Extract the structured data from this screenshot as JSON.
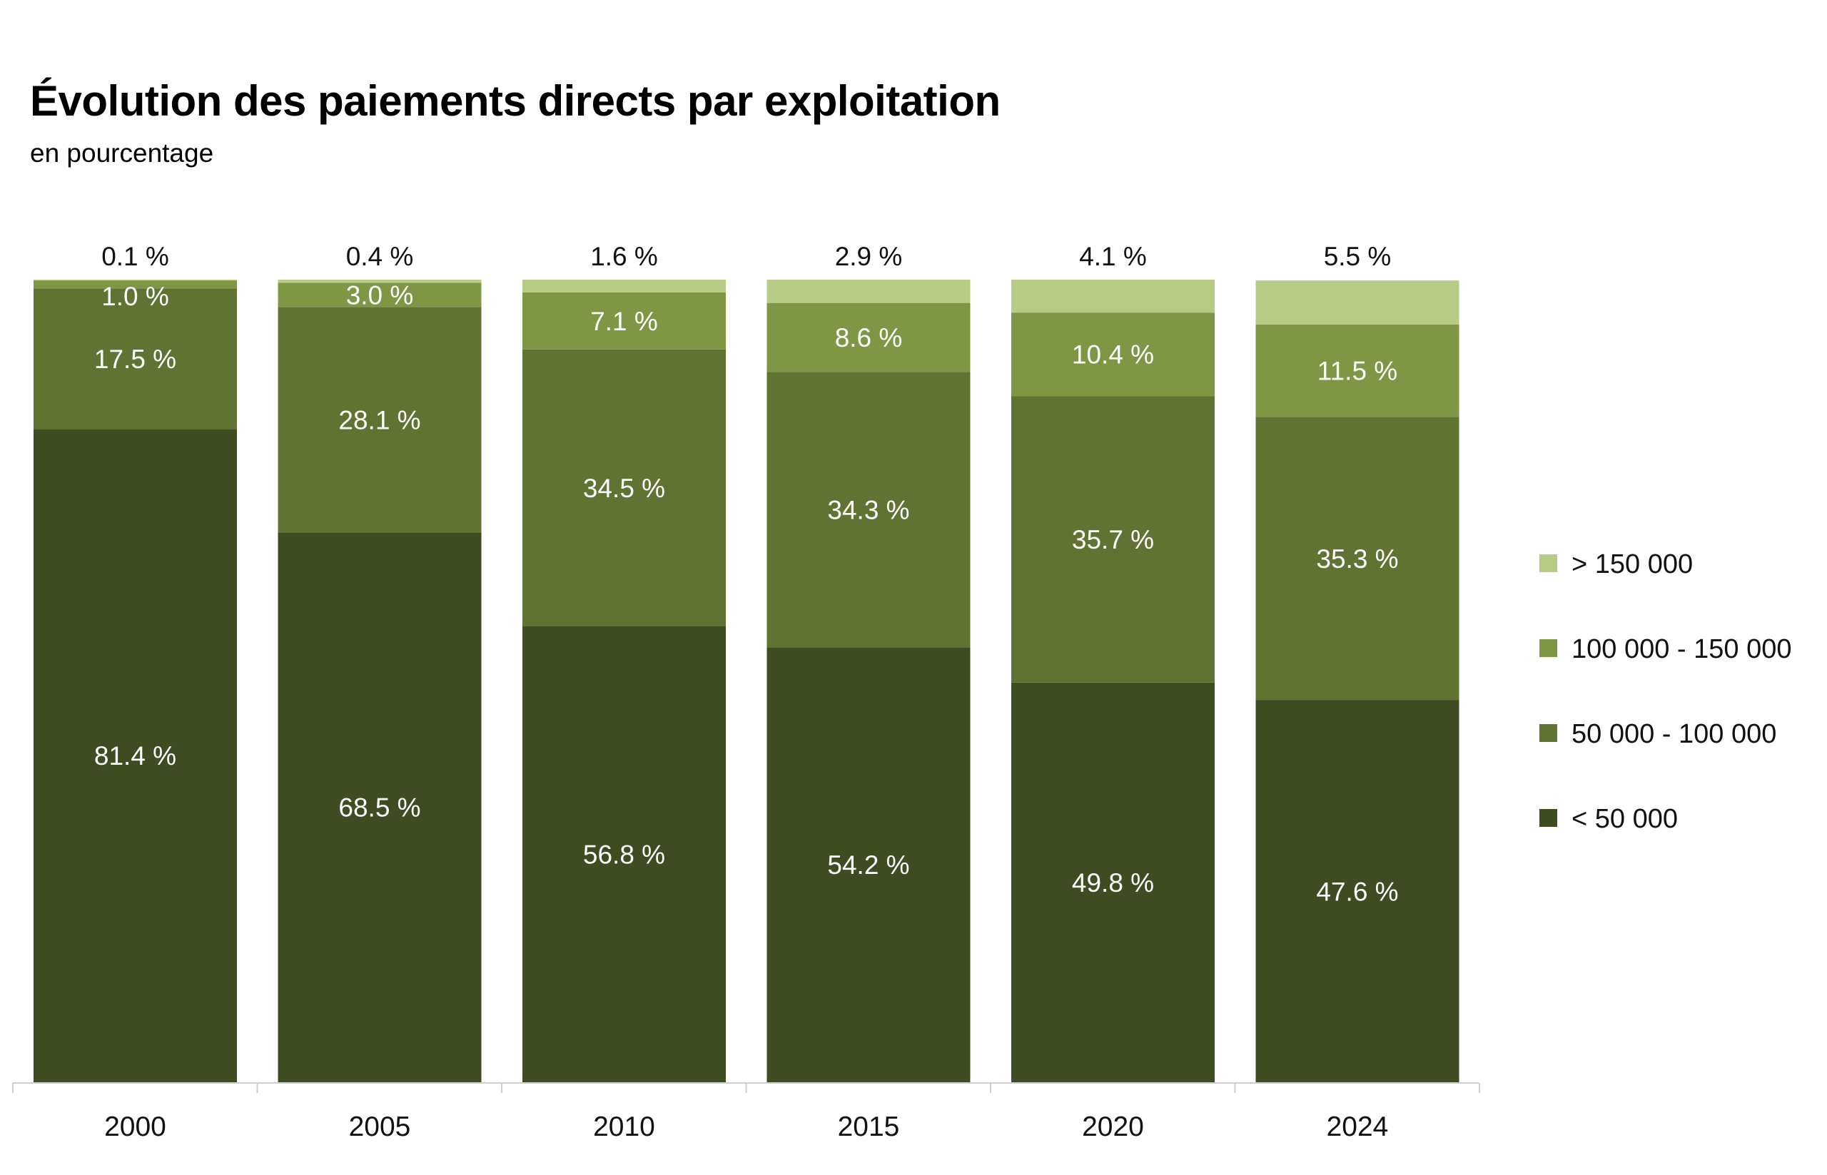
{
  "title": "Évolution des paiements directs par exploitation",
  "subtitle": "en pourcentage",
  "colors": {
    "lt50": "#3f4c22",
    "r50_100": "#607333",
    "r100_150": "#7f9744",
    "gt150": "#b7cb87"
  },
  "chart_data": {
    "type": "bar",
    "stacked": true,
    "categories": [
      "2000",
      "2005",
      "2010",
      "2015",
      "2020",
      "2024"
    ],
    "series": [
      {
        "name": "< 50 000",
        "key": "lt50",
        "values": [
          81.4,
          68.5,
          56.8,
          54.2,
          49.8,
          47.6
        ],
        "labels": [
          "81.4 %",
          "68.5 %",
          "56.8 %",
          "54.2 %",
          "49.8 %",
          "47.6 %"
        ]
      },
      {
        "name": "50 000 - 100 000",
        "key": "r50_100",
        "values": [
          17.5,
          28.1,
          34.5,
          34.3,
          35.7,
          35.3
        ],
        "labels": [
          "17.5 %",
          "28.1 %",
          "34.5 %",
          "34.3 %",
          "35.7 %",
          "35.3 %"
        ]
      },
      {
        "name": "100 000 - 150 000",
        "key": "r100_150",
        "values": [
          1.0,
          3.0,
          7.1,
          8.6,
          10.4,
          11.5
        ],
        "labels": [
          "1.0 %",
          "3.0 %",
          "7.1 %",
          "8.6 %",
          "10.4 %",
          "11.5 %"
        ]
      },
      {
        "name": "> 150 000",
        "key": "gt150",
        "values": [
          0.1,
          0.4,
          1.6,
          2.9,
          4.1,
          5.5
        ],
        "labels": [
          "0.1 %",
          "0.4 %",
          "1.6 %",
          "2.9 %",
          "4.1 %",
          "5.5 %"
        ]
      }
    ],
    "legend_order": [
      "> 150 000",
      "100 000 - 150 000",
      "50 000 - 100 000",
      "< 50 000"
    ],
    "ylim": [
      0,
      100
    ],
    "legend_position": "right",
    "grid": false
  }
}
